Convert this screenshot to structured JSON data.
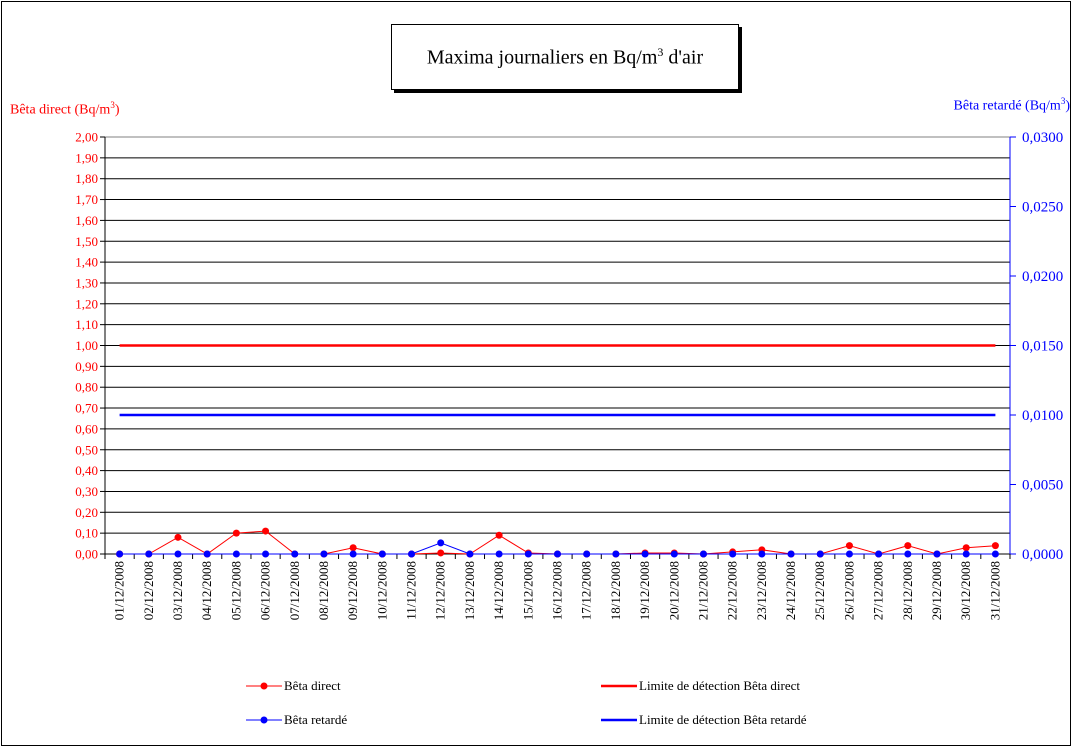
{
  "chart_data": {
    "type": "line",
    "title_main": "Maxima journaliers en Bq/m",
    "title_sup": "3",
    "title_tail": " d'air",
    "y_left_label_main": "Bêta direct (Bq/m",
    "y_left_label_sup": "3",
    "y_left_label_tail": ")",
    "y_right_label_main": "Bêta retardé (Bq/m",
    "y_right_label_sup": "3",
    "y_right_label_tail": ")",
    "categories": [
      "01/12/2008",
      "02/12/2008",
      "03/12/2008",
      "04/12/2008",
      "05/12/2008",
      "06/12/2008",
      "07/12/2008",
      "08/12/2008",
      "09/12/2008",
      "10/12/2008",
      "11/12/2008",
      "12/12/2008",
      "13/12/2008",
      "14/12/2008",
      "15/12/2008",
      "16/12/2008",
      "17/12/2008",
      "18/12/2008",
      "19/12/2008",
      "20/12/2008",
      "21/12/2008",
      "22/12/2008",
      "23/12/2008",
      "24/12/2008",
      "25/12/2008",
      "26/12/2008",
      "27/12/2008",
      "28/12/2008",
      "29/12/2008",
      "30/12/2008",
      "31/12/2008"
    ],
    "y_left": {
      "min": 0,
      "max": 2.0,
      "ticks": [
        "0,00",
        "0,10",
        "0,20",
        "0,30",
        "0,40",
        "0,50",
        "0,60",
        "0,70",
        "0,80",
        "0,90",
        "1,00",
        "1,10",
        "1,20",
        "1,30",
        "1,40",
        "1,50",
        "1,60",
        "1,70",
        "1,80",
        "1,90",
        "2,00"
      ]
    },
    "y_right": {
      "min": 0,
      "max": 0.03,
      "ticks": [
        "0,0000",
        "0,0050",
        "0,0100",
        "0,0150",
        "0,0200",
        "0,0250",
        "0,0300"
      ]
    },
    "series": [
      {
        "name": "Bêta direct",
        "axis": "left",
        "color": "#ff0000",
        "marker": true,
        "values": [
          0,
          0,
          0.08,
          0,
          0.1,
          0.11,
          0,
          0,
          0.03,
          0,
          0,
          0.005,
          0,
          0.09,
          0.005,
          0,
          0,
          0,
          0.005,
          0.005,
          0,
          0.01,
          0.02,
          0,
          0,
          0.04,
          0,
          0.04,
          0,
          0.03,
          0.04
        ]
      },
      {
        "name": "Limite de détection Bêta direct",
        "axis": "left",
        "color": "#ff0000",
        "marker": false,
        "values": [
          1.0,
          1.0,
          1.0,
          1.0,
          1.0,
          1.0,
          1.0,
          1.0,
          1.0,
          1.0,
          1.0,
          1.0,
          1.0,
          1.0,
          1.0,
          1.0,
          1.0,
          1.0,
          1.0,
          1.0,
          1.0,
          1.0,
          1.0,
          1.0,
          1.0,
          1.0,
          1.0,
          1.0,
          1.0,
          1.0,
          1.0
        ]
      },
      {
        "name": "Bêta retardé",
        "axis": "right",
        "color": "#0000ff",
        "marker": true,
        "values": [
          0,
          0,
          0,
          0,
          0,
          0,
          0,
          0,
          0,
          0,
          0,
          0.0008,
          0,
          0,
          0,
          0,
          0,
          0,
          0,
          0,
          0,
          0,
          0,
          0,
          0,
          0,
          0,
          0,
          0,
          0,
          0
        ]
      },
      {
        "name": "Limite de détection Bêta retardé",
        "axis": "right",
        "color": "#0000ff",
        "marker": false,
        "values": [
          0.01,
          0.01,
          0.01,
          0.01,
          0.01,
          0.01,
          0.01,
          0.01,
          0.01,
          0.01,
          0.01,
          0.01,
          0.01,
          0.01,
          0.01,
          0.01,
          0.01,
          0.01,
          0.01,
          0.01,
          0.01,
          0.01,
          0.01,
          0.01,
          0.01,
          0.01,
          0.01,
          0.01,
          0.01,
          0.01,
          0.01
        ]
      }
    ],
    "grid": true,
    "legend_position": "bottom"
  }
}
